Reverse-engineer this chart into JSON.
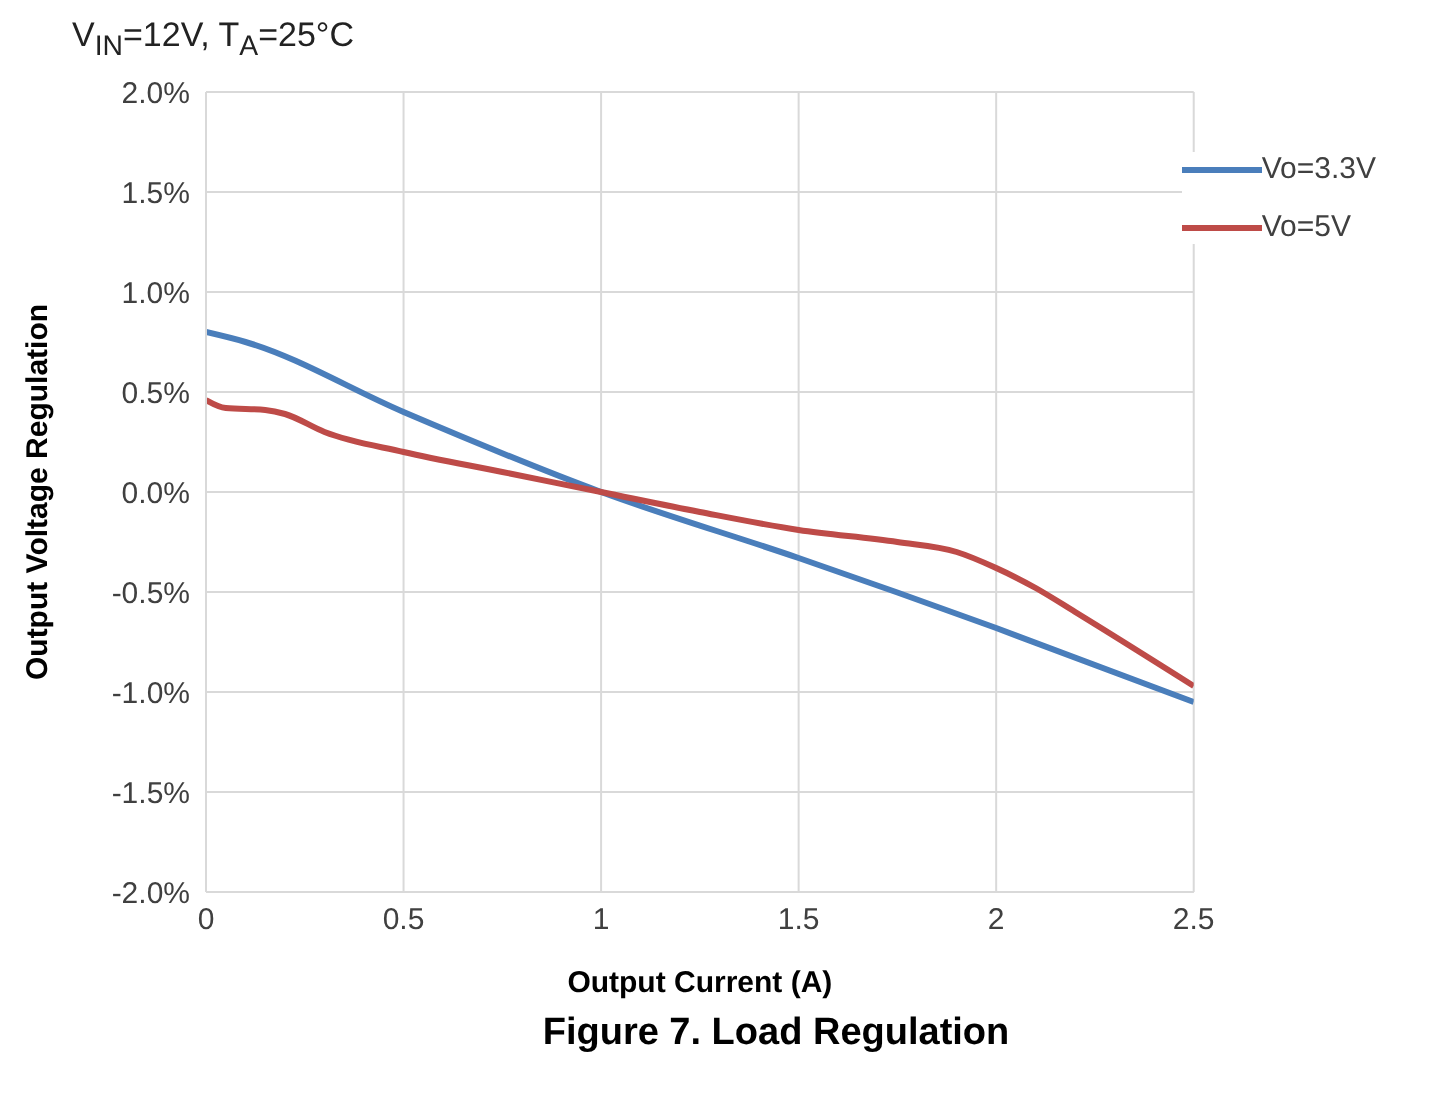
{
  "chart_data": {
    "type": "line",
    "title": "Figure 7. Load Regulation",
    "subtitle": "V$_{IN}$=12V, T$_{A}$=25°C",
    "xlabel": "Output Current (A)",
    "ylabel": "Output Voltage Regulation",
    "xlim": [
      0,
      2.5
    ],
    "xticks": [
      0,
      0.5,
      1,
      1.5,
      2,
      2.5
    ],
    "ylim": [
      -2,
      2
    ],
    "yticks": [
      {
        "value": -2,
        "label": "-2.0%"
      },
      {
        "value": -1.5,
        "label": "-1.5%"
      },
      {
        "value": -1,
        "label": "-1.0%"
      },
      {
        "value": -0.5,
        "label": "-0.5%"
      },
      {
        "value": 0,
        "label": "0.0%"
      },
      {
        "value": 0.5,
        "label": "0.5%"
      },
      {
        "value": 1,
        "label": "1.0%"
      },
      {
        "value": 1.5,
        "label": "1.5%"
      },
      {
        "value": 2,
        "label": "2.0%"
      }
    ],
    "grid": true,
    "legend": "top right",
    "marker": "none",
    "line_style": "solid",
    "series": [
      {
        "name": "Vo=3.3V",
        "color": "#4a7ebb",
        "x": [
          0,
          0.1,
          0.5,
          1,
          1.5,
          2,
          2.5
        ],
        "values": [
          0.8,
          0.75,
          0.4,
          0,
          -0.33,
          -0.68,
          -1.05
        ]
      },
      {
        "name": "Vo=5V",
        "color": "#be4b48",
        "x": [
          0,
          0.05,
          0.15,
          0.2,
          0.3,
          0.5,
          0.75,
          1,
          1.25,
          1.5,
          1.75,
          1.9,
          2,
          2.1,
          2.2,
          2.5
        ],
        "values": [
          0.46,
          0.42,
          0.41,
          0.39,
          0.3,
          0.2,
          0.1,
          0,
          -0.1,
          -0.19,
          -0.25,
          -0.3,
          -0.38,
          -0.48,
          -0.6,
          -0.97
        ]
      }
    ]
  }
}
